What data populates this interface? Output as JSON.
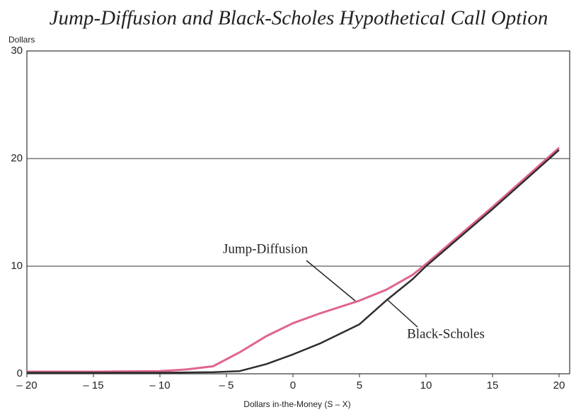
{
  "chart_data": {
    "type": "line",
    "title": "Jump-Diffusion and Black-Scholes Hypothetical Call Option",
    "y_label": "Dollars",
    "x_label": "Dollars in-the-Money (S – X)",
    "x": [
      -20,
      -15,
      -10,
      -8,
      -6,
      -4,
      -2,
      0,
      2,
      5,
      7,
      9,
      10,
      15,
      20
    ],
    "series": [
      {
        "name": "Jump-Diffusion",
        "color": "#e0648e",
        "values": [
          0.2,
          0.2,
          0.25,
          0.4,
          0.7,
          2.0,
          3.5,
          4.7,
          5.6,
          6.8,
          7.8,
          9.2,
          10.2,
          15.5,
          21
        ]
      },
      {
        "name": "Black-Scholes",
        "color": "#2e2e2e",
        "values": [
          0.1,
          0.1,
          0.1,
          0.12,
          0.15,
          0.25,
          0.9,
          1.8,
          2.8,
          4.6,
          6.8,
          8.8,
          10,
          15.3,
          20.8
        ]
      }
    ],
    "xlim": [
      -20,
      20.8
    ],
    "ylim": [
      0,
      30
    ],
    "xticks": [
      {
        "value": -20,
        "label": "– 20"
      },
      {
        "value": -15,
        "label": "– 15"
      },
      {
        "value": -10,
        "label": "– 10"
      },
      {
        "value": -5,
        "label": "– 5"
      },
      0,
      5,
      10,
      15,
      20
    ],
    "yticks": [
      0,
      10,
      20,
      30
    ],
    "grid": true
  }
}
